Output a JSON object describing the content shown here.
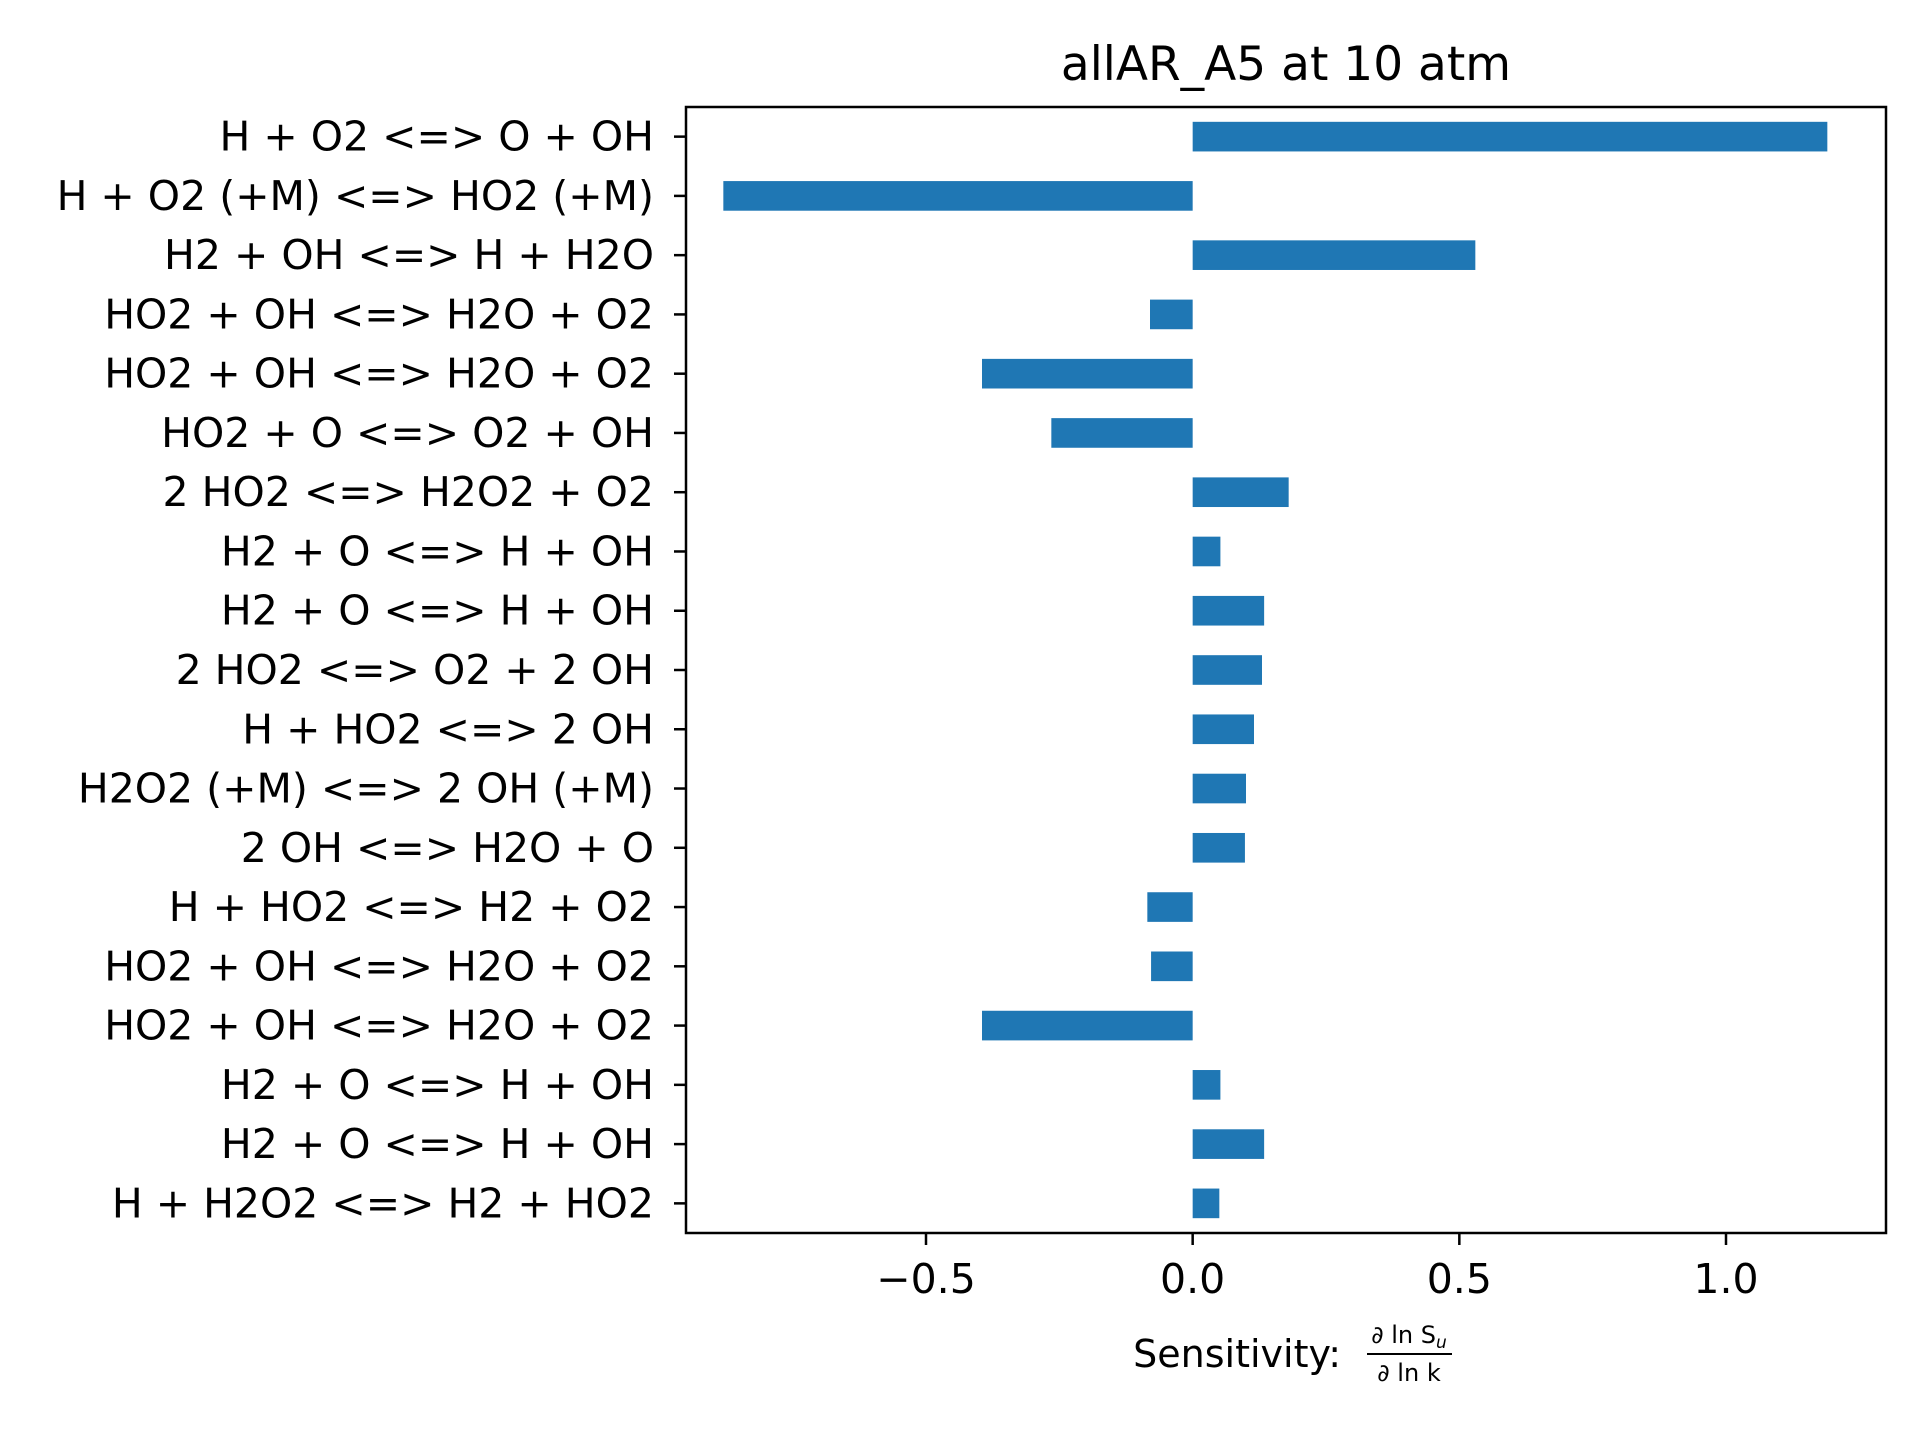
{
  "chart_data": {
    "type": "bar",
    "orientation": "horizontal",
    "title": "allAR_A5 at 10 atm",
    "xlabel_prefix": "Sensitivity:",
    "xlabel_numerator": "∂ ln S",
    "xlabel_numerator_sub": "u",
    "xlabel_denominator": "∂ ln k",
    "ylabel": "",
    "xlim": [
      -0.95,
      1.3
    ],
    "xticks": [
      -0.5,
      0.0,
      0.5,
      1.0
    ],
    "xtick_labels": [
      "−0.5",
      "0.0",
      "0.5",
      "1.0"
    ],
    "grid": false,
    "bar_color": "#1f77b4",
    "categories": [
      "H + O2 <=> O + OH",
      "H + O2 (+M) <=> HO2 (+M)",
      "H2 + OH <=> H + H2O",
      "HO2 + OH <=> H2O + O2",
      "HO2 + OH <=> H2O + O2",
      "HO2 + O <=> O2 + OH",
      "2 HO2 <=> H2O2 + O2",
      "H2 + O <=> H + OH",
      "H2 + O <=> H + OH",
      "2 HO2 <=> O2 + 2 OH",
      "H + HO2 <=> 2 OH",
      "H2O2 (+M) <=> 2 OH (+M)",
      "2 OH <=> H2O + O",
      "H + HO2 <=> H2 + O2",
      "HO2 + OH <=> H2O + O2",
      "HO2 + OH <=> H2O + O2",
      "H2 + O <=> H + OH",
      "H2 + O <=> H + OH",
      "H + H2O2 <=> H2 + HO2"
    ],
    "values": [
      1.19,
      -0.88,
      0.53,
      -0.08,
      -0.395,
      -0.265,
      0.18,
      0.052,
      0.134,
      0.13,
      0.115,
      0.1,
      0.098,
      -0.085,
      -0.078,
      -0.395,
      0.052,
      0.134,
      0.05
    ]
  }
}
